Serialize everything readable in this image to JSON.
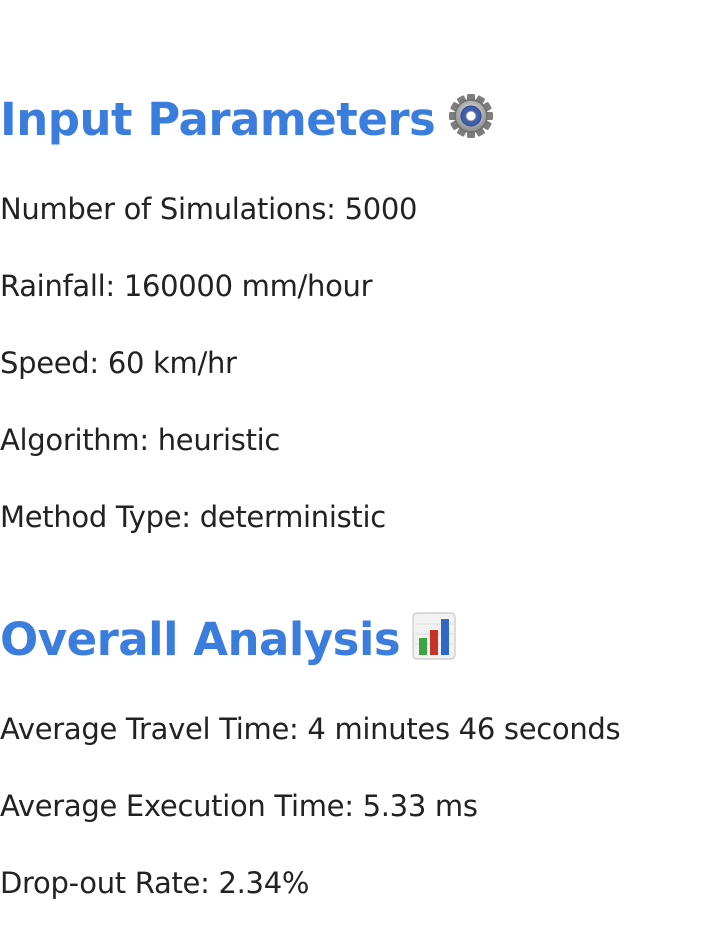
{
  "input_section": {
    "title": "Input Parameters",
    "icon": "gear-icon",
    "items": [
      {
        "label": "Number of Simulations: ",
        "value": "5000"
      },
      {
        "label": "Rainfall: ",
        "value": "160000 mm/hour"
      },
      {
        "label": "Speed: ",
        "value": "60 km/hr"
      },
      {
        "label": "Algorithm: ",
        "value": "heuristic"
      },
      {
        "label": "Method Type: ",
        "value": "deterministic"
      }
    ]
  },
  "analysis_section": {
    "title": "Overall Analysis",
    "icon": "bar-chart-icon",
    "items": [
      {
        "label": "Average Travel Time: ",
        "value": "4 minutes 46 seconds"
      },
      {
        "label": "Average Execution Time: ",
        "value": "5.33 ms"
      },
      {
        "label": "Drop-out Rate: ",
        "value": "2.34%"
      }
    ]
  },
  "colors": {
    "heading": "#3b7ddd",
    "text": "#222222"
  }
}
